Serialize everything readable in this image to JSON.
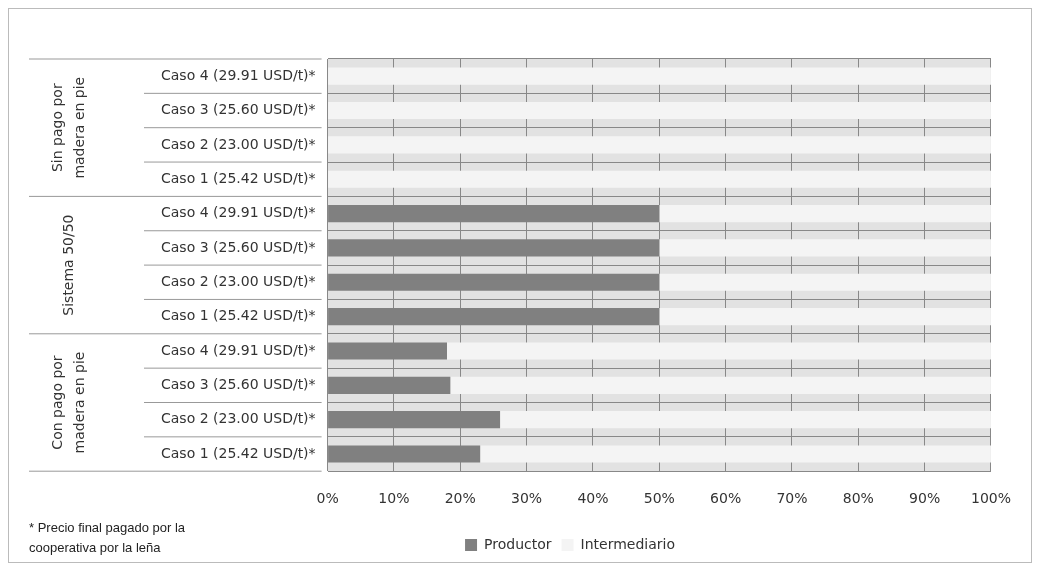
{
  "chart_data": {
    "type": "bar",
    "orientation": "horizontal",
    "stacked": true,
    "categories": [
      "Caso 4 (29.91 USD/t)*",
      "Caso 3 (25.60 USD/t)*",
      "Caso 2 (23.00 USD/t)*",
      "Caso 1 (25.42 USD/t)*",
      "Caso 4 (29.91 USD/t)*",
      "Caso 3 (25.60 USD/t)*",
      "Caso 2 (23.00 USD/t)*",
      "Caso 1 (25.42 USD/t)*",
      "Caso 4 (29.91 USD/t)*",
      "Caso 3 (25.60 USD/t)*",
      "Caso 2 (23.00 USD/t)*",
      "Caso 1 (25.42 USD/t)*"
    ],
    "series": [
      {
        "name": "Productor",
        "color": "#808080",
        "values": [
          0,
          0,
          0,
          0,
          50,
          50,
          50,
          50,
          18,
          18.5,
          26,
          23
        ]
      },
      {
        "name": "Intermediario",
        "color": "#f4f4f4",
        "values": [
          100,
          100,
          100,
          100,
          50,
          50,
          50,
          50,
          82,
          81.5,
          74,
          77
        ]
      }
    ],
    "xlim": [
      0,
      100
    ],
    "xticks": [
      {
        "value": 0,
        "label": "0%"
      },
      {
        "value": 10,
        "label": "10%"
      },
      {
        "value": 20,
        "label": "20%"
      },
      {
        "value": 30,
        "label": "30%"
      },
      {
        "value": 40,
        "label": "40%"
      },
      {
        "value": 50,
        "label": "50%"
      },
      {
        "value": 60,
        "label": "60%"
      },
      {
        "value": 70,
        "label": "70%"
      },
      {
        "value": 80,
        "label": "80%"
      },
      {
        "value": 90,
        "label": "90%"
      },
      {
        "value": 100,
        "label": "100%"
      }
    ],
    "grid": true,
    "legend": "bottom",
    "annotations": [
      "Sin pago por madera en pie",
      "Sistema 50/50",
      "Con pago por madera en pie",
      "* Precio final pagado por la cooperativa por la leña"
    ]
  }
}
